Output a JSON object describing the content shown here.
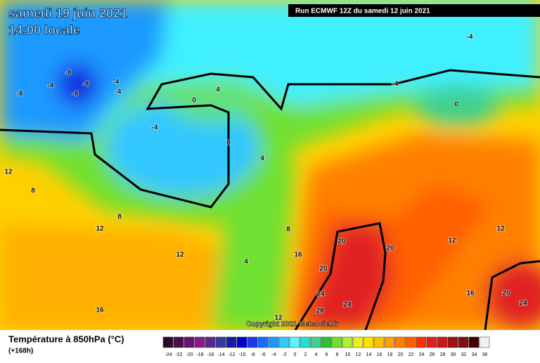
{
  "header": {
    "title": "samedi 19 juin 2021",
    "subtitle": "14:00 locale",
    "run": "Run ECMWF 12Z du samedi 12 juin 2021"
  },
  "map": {
    "contour_labels": [
      "-4",
      "-8",
      "-8",
      "-8",
      "-8",
      "-4",
      "-4",
      "-4",
      "-4",
      "0",
      "4",
      "0",
      "-4",
      "0",
      "4",
      "12",
      "8",
      "8",
      "12",
      "12",
      "16",
      "4",
      "8",
      "16",
      "20",
      "20",
      "20",
      "24",
      "24",
      "28",
      "12",
      "12",
      "12",
      "16",
      "20",
      "24"
    ]
  },
  "footer": {
    "copyright": "Copyright 2021 Meteociel.fr",
    "legend_title": "Température à 850hPa (°C)",
    "lead_time": "(+168h)"
  },
  "legend": {
    "ticks": [
      -24,
      -22,
      -20,
      -18,
      -16,
      -14,
      -12,
      -10,
      -8,
      -6,
      -4,
      -2,
      0,
      2,
      4,
      6,
      8,
      10,
      12,
      14,
      16,
      18,
      20,
      22,
      24,
      26,
      28,
      30,
      32,
      34,
      36
    ],
    "colors": [
      "#2a0a2a",
      "#4b0c4b",
      "#6a1070",
      "#8a1a8a",
      "#5a2a8a",
      "#3a3a9a",
      "#1a1aaa",
      "#0000d0",
      "#1a3ae8",
      "#1a6aff",
      "#1a9aff",
      "#30c8ff",
      "#60f0ff",
      "#20e0d0",
      "#40d090",
      "#30c030",
      "#70e030",
      "#b0f030",
      "#e8f020",
      "#ffe000",
      "#ffc000",
      "#ffa000",
      "#ff8000",
      "#ff6000",
      "#ff3000",
      "#e02020",
      "#c81818",
      "#a01010",
      "#801010",
      "#400000",
      "#f0f0f0"
    ]
  }
}
